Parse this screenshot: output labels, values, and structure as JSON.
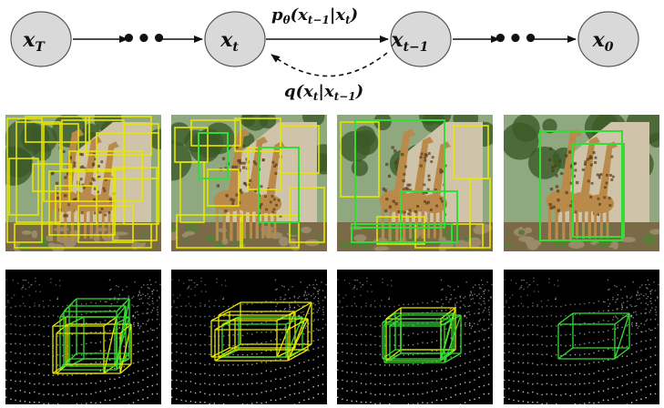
{
  "chain": {
    "nodes": [
      {
        "id": "xT",
        "base": "x",
        "sub": "T"
      },
      {
        "id": "xt",
        "base": "x",
        "sub": "t"
      },
      {
        "id": "xt1",
        "base": "x",
        "sub": "t−1"
      },
      {
        "id": "x0",
        "base": "x",
        "sub": "0"
      }
    ],
    "ellipsis": "•••",
    "reverse_label": {
      "p": "p",
      "theta": "θ",
      "open": "(",
      "x1": "x",
      "x1_sub": "t−1",
      "bar": "|",
      "x2": "x",
      "x2_sub": "t",
      "close": ")"
    },
    "forward_label": {
      "q": "q",
      "open": "(",
      "x1": "x",
      "x1_sub": "t",
      "bar": "|",
      "x2": "x",
      "x2_sub": "t−1",
      "close": ")"
    }
  },
  "colors": {
    "node_fill": "#d9d9d9",
    "node_stroke": "#555555",
    "box_yellow": "#e6e600",
    "box_green": "#33dd33",
    "wall": "#cfc4aa",
    "sky": "#8fa880",
    "foliage": "#3b5a28",
    "ground": "#7a6a48",
    "giraffe": "#b98a4a",
    "giraffe_spot": "#5a3818",
    "lidar_bg": "#000000",
    "lidar_points": "#d8d8d8"
  },
  "image_rows": [
    {
      "name": "detection-2d",
      "panels": 4
    },
    {
      "name": "detection-3d",
      "panels": 4
    }
  ]
}
